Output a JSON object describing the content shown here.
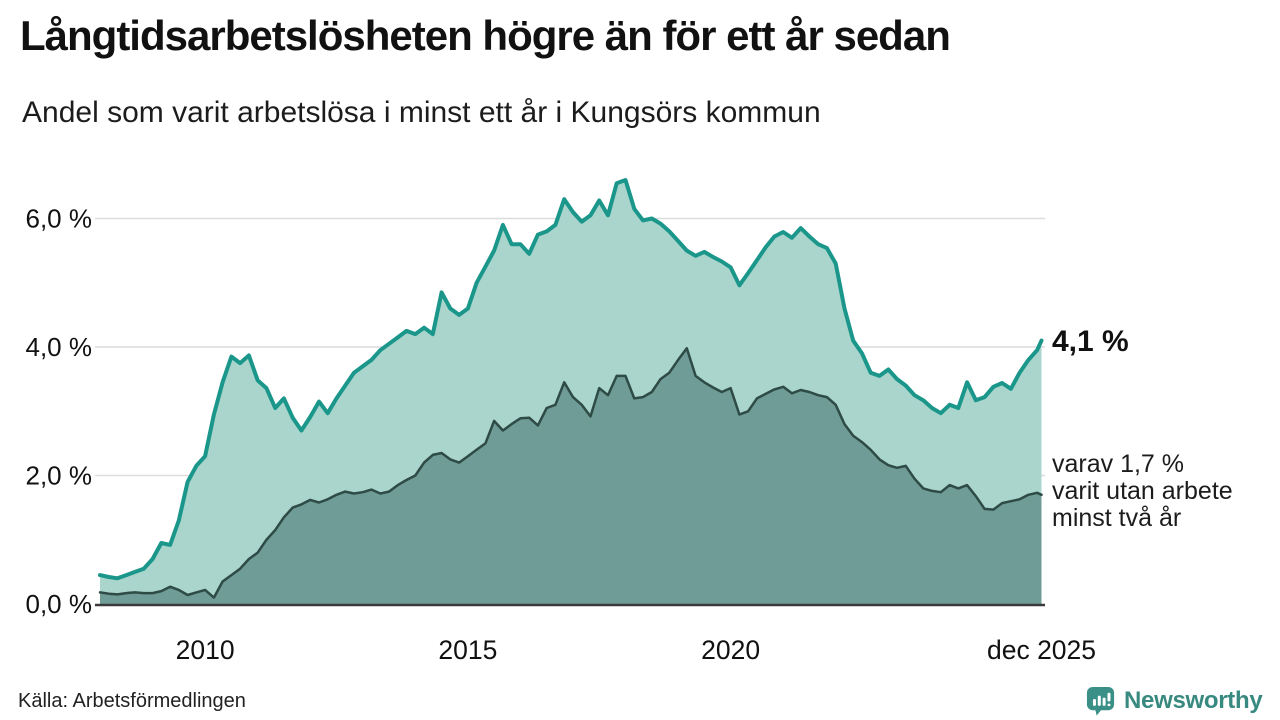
{
  "header": {
    "title": "Långtidsarbetslösheten högre än för ett år sedan",
    "subtitle": "Andel som varit arbetslösa i minst ett år i Kungsörs kommun"
  },
  "annotations": {
    "latest_total": "4,1 %",
    "secondary_line1": "varav 1,7 %",
    "secondary_line2": "varit utan arbete",
    "secondary_line3": "minst två år"
  },
  "footer": {
    "source": "Källa: Arbetsförmedlingen",
    "brand": "Newsworthy"
  },
  "colors": {
    "line_total": "#1b968a",
    "fill_total": "#a9d5cc",
    "line_two_years": "#2e4b46",
    "fill_two_years": "#6f9c96",
    "grid": "#dcdcdc",
    "axis": "#3b3b3b",
    "text": "#111111",
    "brand": "#38897f"
  },
  "chart_data": {
    "type": "area",
    "title": "Långtidsarbetslösheten högre än för ett år sedan",
    "subtitle": "Andel som varit arbetslösa i minst ett år i Kungsörs kommun",
    "unit": "%",
    "x_start_year": 2008,
    "x_step_years": 0.1666667,
    "x_end_year": 2025.9167,
    "x_tick_years": [
      2010,
      2015,
      2020,
      2025.9167
    ],
    "x_tick_labels": [
      "2010",
      "2015",
      "2020",
      "dec 2025"
    ],
    "y_ticks": [
      0,
      2,
      4,
      6
    ],
    "y_tick_labels": [
      "0,0 %",
      "2,0 %",
      "4,0 %",
      "6,0 %"
    ],
    "ylim": [
      0,
      6.8
    ],
    "grid": true,
    "legend_position": "right-annotations",
    "series": [
      {
        "name": "Andel arbetslösa minst ett år",
        "latest_label": "4,1 %",
        "latest_value": 4.1,
        "values": [
          0.45,
          0.42,
          0.4,
          0.45,
          0.5,
          0.55,
          0.7,
          0.95,
          0.92,
          1.3,
          1.9,
          2.15,
          2.3,
          2.95,
          3.45,
          3.85,
          3.75,
          3.87,
          3.48,
          3.36,
          3.05,
          3.2,
          2.9,
          2.7,
          2.91,
          3.15,
          2.97,
          3.2,
          3.4,
          3.6,
          3.7,
          3.8,
          3.95,
          4.05,
          4.15,
          4.25,
          4.2,
          4.3,
          4.2,
          4.85,
          4.6,
          4.5,
          4.6,
          5.0,
          5.25,
          5.5,
          5.9,
          5.6,
          5.6,
          5.45,
          5.75,
          5.8,
          5.9,
          6.3,
          6.1,
          5.95,
          6.05,
          6.28,
          6.05,
          6.55,
          6.6,
          6.15,
          5.97,
          6.0,
          5.92,
          5.8,
          5.65,
          5.5,
          5.42,
          5.48,
          5.4,
          5.33,
          5.24,
          4.96,
          5.15,
          5.35,
          5.55,
          5.72,
          5.79,
          5.7,
          5.85,
          5.72,
          5.6,
          5.54,
          5.3,
          4.6,
          4.1,
          3.9,
          3.6,
          3.55,
          3.65,
          3.5,
          3.4,
          3.25,
          3.17,
          3.05,
          2.97,
          3.1,
          3.05,
          3.45,
          3.17,
          3.22,
          3.38,
          3.44,
          3.35,
          3.6,
          3.8,
          3.95,
          4.1
        ]
      },
      {
        "name": "varav utan arbete minst två år",
        "latest_label": "varav 1,7 %",
        "latest_value": 1.7,
        "values": [
          0.18,
          0.16,
          0.15,
          0.17,
          0.18,
          0.17,
          0.17,
          0.2,
          0.27,
          0.22,
          0.14,
          0.18,
          0.22,
          0.1,
          0.35,
          0.45,
          0.55,
          0.7,
          0.8,
          1.0,
          1.15,
          1.35,
          1.5,
          1.55,
          1.62,
          1.58,
          1.63,
          1.7,
          1.75,
          1.72,
          1.74,
          1.78,
          1.72,
          1.75,
          1.85,
          1.93,
          2.0,
          2.2,
          2.32,
          2.35,
          2.25,
          2.2,
          2.3,
          2.4,
          2.5,
          2.85,
          2.7,
          2.8,
          2.89,
          2.9,
          2.78,
          3.05,
          3.1,
          3.45,
          3.22,
          3.1,
          2.92,
          3.36,
          3.25,
          3.55,
          3.55,
          3.2,
          3.22,
          3.3,
          3.5,
          3.6,
          3.8,
          3.98,
          3.55,
          3.45,
          3.37,
          3.3,
          3.36,
          2.95,
          3.0,
          3.2,
          3.27,
          3.34,
          3.38,
          3.28,
          3.33,
          3.3,
          3.25,
          3.22,
          3.1,
          2.8,
          2.62,
          2.52,
          2.4,
          2.25,
          2.16,
          2.12,
          2.15,
          1.95,
          1.8,
          1.76,
          1.74,
          1.85,
          1.8,
          1.85,
          1.68,
          1.48,
          1.47,
          1.57,
          1.6,
          1.63,
          1.7,
          1.73,
          1.7
        ]
      }
    ]
  }
}
